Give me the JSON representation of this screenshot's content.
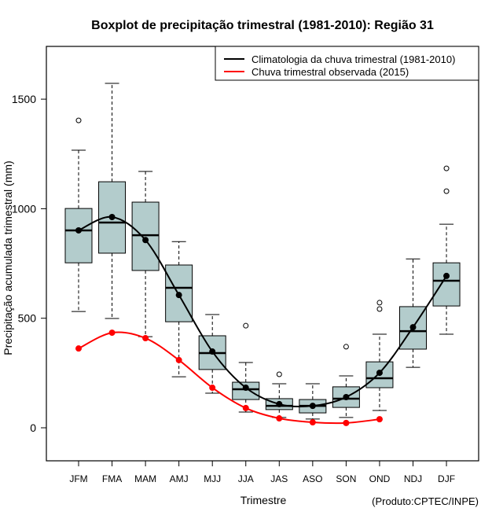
{
  "chart_data": {
    "type": "boxplot",
    "title": "Boxplot de precipitação trimestral (1981-2010): Região 31",
    "xlabel": "Trimestre",
    "ylabel": "Precipitação acumulada trimestral (mm)",
    "credit": "(Produto:CPTEC/INPE)",
    "ylim": [
      -150,
      1720
    ],
    "yticks": [
      0,
      500,
      1000,
      1500
    ],
    "grid": false,
    "categories": [
      "JFM",
      "FMA",
      "MAM",
      "AMJ",
      "MJJ",
      "JJA",
      "JAS",
      "ASO",
      "SON",
      "OND",
      "NDJ",
      "DJF"
    ],
    "box_color": "#b3cccc",
    "boxes": [
      {
        "category": "JFM",
        "whisker_low": 531,
        "q1": 753,
        "median": 901,
        "q3": 1001,
        "whisker_high": 1267,
        "outliers": [
          1403
        ]
      },
      {
        "category": "FMA",
        "whisker_low": 499,
        "q1": 797,
        "median": 937,
        "q3": 1123,
        "whisker_high": 1572,
        "outliers": []
      },
      {
        "category": "MAM",
        "whisker_low": 416,
        "q1": 718,
        "median": 879,
        "q3": 1030,
        "whisker_high": 1170,
        "outliers": []
      },
      {
        "category": "AMJ",
        "whisker_low": 233,
        "q1": 484,
        "median": 639,
        "q3": 743,
        "whisker_high": 850,
        "outliers": []
      },
      {
        "category": "MJJ",
        "whisker_low": 158,
        "q1": 266,
        "median": 341,
        "q3": 420,
        "whisker_high": 517,
        "outliers": []
      },
      {
        "category": "JJA",
        "whisker_low": 72,
        "q1": 129,
        "median": 176,
        "q3": 208,
        "whisker_high": 298,
        "outliers": [
          466
        ]
      },
      {
        "category": "JAS",
        "whisker_low": 47,
        "q1": 83,
        "median": 100,
        "q3": 133,
        "whisker_high": 201,
        "outliers": [
          244
        ]
      },
      {
        "category": "ASO",
        "whisker_low": 40,
        "q1": 68,
        "median": 100,
        "q3": 129,
        "whisker_high": 201,
        "outliers": []
      },
      {
        "category": "SON",
        "whisker_low": 47,
        "q1": 93,
        "median": 133,
        "q3": 187,
        "whisker_high": 237,
        "outliers": [
          370
        ]
      },
      {
        "category": "OND",
        "whisker_low": 79,
        "q1": 183,
        "median": 226,
        "q3": 301,
        "whisker_high": 427,
        "outliers": [
          542,
          571
        ]
      },
      {
        "category": "NDJ",
        "whisker_low": 276,
        "q1": 359,
        "median": 441,
        "q3": 553,
        "whisker_high": 771,
        "outliers": []
      },
      {
        "category": "DJF",
        "whisker_low": 427,
        "q1": 556,
        "median": 671,
        "q3": 753,
        "whisker_high": 929,
        "outliers": [
          1080,
          1184
        ]
      }
    ],
    "series": [
      {
        "name": "Climatologia da chuva trimestral (1981-2010)",
        "color": "#000000",
        "values": [
          901,
          962,
          857,
          606,
          348,
          183,
          108,
          100,
          140,
          251,
          459,
          693
        ]
      },
      {
        "name": "Chuva trimestral observada (2015)",
        "color": "#ff0000",
        "values": [
          362,
          434,
          409,
          309,
          183,
          90,
          43,
          25,
          22,
          39,
          null,
          null
        ]
      }
    ],
    "legend": {
      "position": "top-right",
      "entries": [
        {
          "label": "Climatologia da chuva trimestral (1981-2010)",
          "color": "#000000"
        },
        {
          "label": "Chuva trimestral observada (2015)",
          "color": "#ff0000"
        }
      ]
    }
  }
}
